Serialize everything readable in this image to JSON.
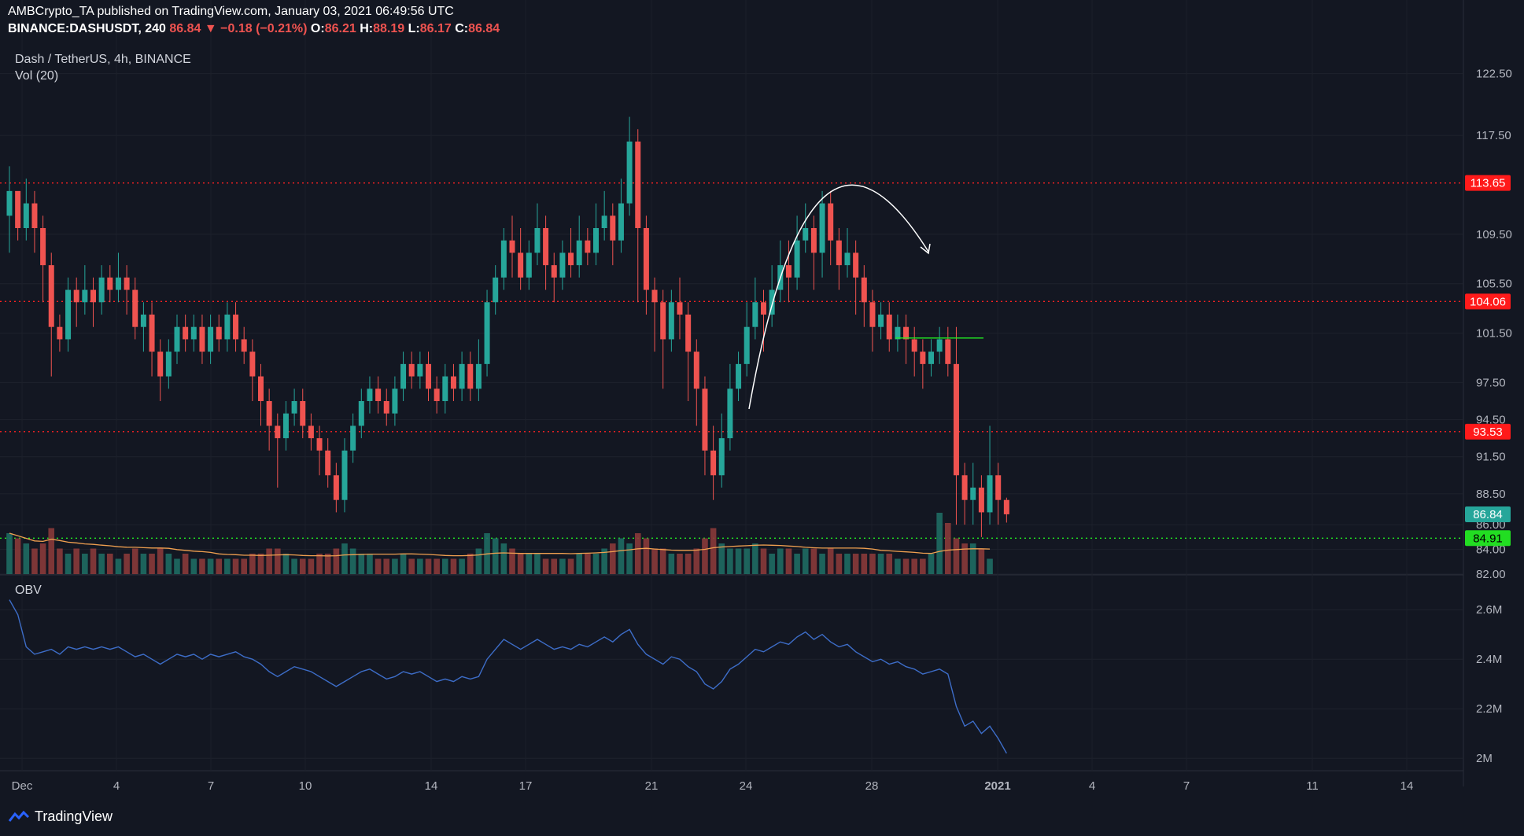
{
  "header": {
    "line1": "AMBCrypto_TA published on TradingView.com, January 03, 2021 06:49:56 UTC",
    "symbol": "BINANCE:DASHUSDT, 240",
    "last": "86.84",
    "change": "−0.18 (−0.21%)",
    "o_label": "O:",
    "o": "86.21",
    "h_label": "H:",
    "h": "88.19",
    "l_label": "L:",
    "l": "86.17",
    "c_label": "C:",
    "c": "86.84"
  },
  "pane_title": "Dash / TetherUS, 4h, BINANCE",
  "vol_label": "Vol (20)",
  "obv_label": "OBV",
  "branding": "TradingView",
  "colors": {
    "up": "#26a69a",
    "down": "#ef5350",
    "bg": "#131722",
    "obv": "#3d6dc8",
    "vol_ma": "#f0a050",
    "resistance": "#ff2222",
    "support": "#22ee22"
  },
  "chart_data": {
    "type": "candlestick",
    "price_axis": {
      "min": 82.0,
      "max": 124.0,
      "ticks": [
        "122.50",
        "117.50",
        "109.50",
        "105.50",
        "101.50",
        "97.50",
        "94.50",
        "91.50",
        "88.50",
        "86.00",
        "84.00",
        "82.00"
      ],
      "tick_values": [
        122.5,
        117.5,
        109.5,
        105.5,
        101.5,
        97.5,
        94.5,
        91.5,
        88.5,
        86.0,
        84.0,
        82.0
      ]
    },
    "obv_axis": {
      "min": 1.95,
      "max": 2.68,
      "ticks": [
        "2.6M",
        "2.4M",
        "2.2M",
        "2M"
      ],
      "tick_values": [
        2.6,
        2.4,
        2.2,
        2.0
      ]
    },
    "x_axis": {
      "labels": [
        "Dec",
        "4",
        "7",
        "10",
        "14",
        "17",
        "21",
        "24",
        "28",
        "2021",
        "4",
        "7",
        "11",
        "14"
      ]
    },
    "levels": [
      {
        "value": 113.65,
        "label": "113.65",
        "color": "#ff2222"
      },
      {
        "value": 104.06,
        "label": "104.06",
        "color": "#ff2222"
      },
      {
        "value": 93.53,
        "label": "93.53",
        "color": "#ff2222"
      },
      {
        "value": 84.91,
        "label": "84.91",
        "color": "#22ee22"
      }
    ],
    "last_price": {
      "value": 86.84,
      "label": "86.84"
    },
    "candles": [
      [
        111,
        113,
        115,
        108
      ],
      [
        113,
        110,
        112,
        109
      ],
      [
        110,
        112,
        114,
        109
      ],
      [
        112,
        110,
        113,
        108
      ],
      [
        110,
        107,
        111,
        104
      ],
      [
        107,
        102,
        108,
        98
      ],
      [
        102,
        101,
        103,
        100
      ],
      [
        101,
        105,
        106,
        100
      ],
      [
        105,
        104,
        106,
        102
      ],
      [
        104,
        105,
        107,
        103
      ],
      [
        105,
        104,
        106,
        102
      ],
      [
        104,
        106,
        107,
        103
      ],
      [
        106,
        105,
        107,
        104
      ],
      [
        105,
        106,
        108,
        104
      ],
      [
        106,
        105,
        107,
        103
      ],
      [
        105,
        102,
        106,
        101
      ],
      [
        102,
        103,
        104,
        100
      ],
      [
        103,
        100,
        104,
        98
      ],
      [
        100,
        98,
        101,
        96
      ],
      [
        98,
        100,
        101,
        97
      ],
      [
        100,
        102,
        103,
        99
      ],
      [
        102,
        101,
        103,
        100
      ],
      [
        101,
        102,
        103,
        100
      ],
      [
        102,
        100,
        103,
        99
      ],
      [
        100,
        102,
        103,
        99
      ],
      [
        102,
        101,
        103,
        100
      ],
      [
        101,
        103,
        104,
        100
      ],
      [
        103,
        101,
        104,
        100
      ],
      [
        101,
        100,
        102,
        99
      ],
      [
        100,
        98,
        101,
        96
      ],
      [
        98,
        96,
        99,
        94
      ],
      [
        96,
        94,
        97,
        92
      ],
      [
        94,
        93,
        95,
        89
      ],
      [
        93,
        95,
        96,
        92
      ],
      [
        95,
        96,
        97,
        94
      ],
      [
        96,
        94,
        97,
        93
      ],
      [
        94,
        93,
        95,
        92
      ],
      [
        93,
        92,
        94,
        90
      ],
      [
        92,
        90,
        93,
        89
      ],
      [
        90,
        88,
        91,
        87
      ],
      [
        88,
        92,
        93,
        87
      ],
      [
        92,
        94,
        95,
        91
      ],
      [
        94,
        96,
        97,
        93
      ],
      [
        96,
        97,
        98,
        95
      ],
      [
        97,
        96,
        98,
        95
      ],
      [
        96,
        95,
        97,
        94
      ],
      [
        95,
        97,
        98,
        94
      ],
      [
        97,
        99,
        100,
        96
      ],
      [
        99,
        98,
        100,
        97
      ],
      [
        98,
        99,
        100,
        97
      ],
      [
        99,
        97,
        100,
        96
      ],
      [
        97,
        96,
        98,
        95
      ],
      [
        96,
        98,
        99,
        95
      ],
      [
        98,
        97,
        99,
        96
      ],
      [
        97,
        99,
        100,
        96
      ],
      [
        99,
        97,
        100,
        96
      ],
      [
        97,
        99,
        101,
        96
      ],
      [
        99,
        104,
        105,
        98
      ],
      [
        104,
        106,
        107,
        103
      ],
      [
        106,
        109,
        110,
        105
      ],
      [
        109,
        108,
        111,
        106
      ],
      [
        108,
        106,
        110,
        105
      ],
      [
        106,
        108,
        109,
        105
      ],
      [
        108,
        110,
        112,
        107
      ],
      [
        110,
        107,
        111,
        105
      ],
      [
        107,
        106,
        108,
        104
      ],
      [
        106,
        108,
        109,
        105
      ],
      [
        108,
        107,
        110,
        106
      ],
      [
        107,
        109,
        111,
        106
      ],
      [
        109,
        108,
        110,
        107
      ],
      [
        108,
        110,
        112,
        107
      ],
      [
        110,
        111,
        113,
        109
      ],
      [
        111,
        109,
        112,
        107
      ],
      [
        109,
        112,
        114,
        108
      ],
      [
        112,
        117,
        119,
        111
      ],
      [
        117,
        110,
        118,
        104
      ],
      [
        110,
        105,
        111,
        103
      ],
      [
        105,
        104,
        106,
        100
      ],
      [
        104,
        101,
        105,
        97
      ],
      [
        101,
        104,
        105,
        100
      ],
      [
        104,
        103,
        106,
        101
      ],
      [
        103,
        100,
        104,
        96
      ],
      [
        100,
        97,
        101,
        94
      ],
      [
        97,
        92,
        98,
        90
      ],
      [
        92,
        90,
        94,
        88
      ],
      [
        90,
        93,
        95,
        89
      ],
      [
        93,
        97,
        99,
        92
      ],
      [
        97,
        99,
        100,
        96
      ],
      [
        99,
        102,
        104,
        98
      ],
      [
        102,
        104,
        106,
        101
      ],
      [
        104,
        103,
        105,
        100
      ],
      [
        103,
        105,
        107,
        102
      ],
      [
        105,
        107,
        109,
        104
      ],
      [
        107,
        106,
        109,
        104
      ],
      [
        106,
        109,
        111,
        105
      ],
      [
        109,
        110,
        112,
        108
      ],
      [
        110,
        108,
        111,
        105
      ],
      [
        108,
        112,
        113,
        106
      ],
      [
        112,
        109,
        113,
        107
      ],
      [
        109,
        107,
        110,
        105
      ],
      [
        107,
        108,
        110,
        106
      ],
      [
        108,
        106,
        109,
        103
      ],
      [
        106,
        104,
        107,
        102
      ],
      [
        104,
        102,
        105,
        100
      ],
      [
        102,
        103,
        104,
        101
      ],
      [
        103,
        101,
        104,
        100
      ],
      [
        101,
        102,
        103,
        100
      ],
      [
        102,
        101,
        103,
        99
      ],
      [
        101,
        100,
        102,
        98
      ],
      [
        100,
        99,
        101,
        97
      ],
      [
        99,
        100,
        101,
        98
      ],
      [
        100,
        101,
        102,
        99
      ],
      [
        101,
        99,
        102,
        98
      ],
      [
        99,
        90,
        102,
        86
      ],
      [
        90,
        88,
        91,
        86
      ],
      [
        88,
        89,
        91,
        86
      ],
      [
        89,
        87,
        90,
        85
      ],
      [
        87,
        90,
        94,
        86
      ],
      [
        90,
        88,
        91,
        86
      ],
      [
        88,
        86.84,
        88.19,
        86.17
      ]
    ],
    "volume": [
      8,
      7,
      6,
      5,
      6,
      9,
      5,
      4,
      5,
      4,
      5,
      4,
      4,
      3,
      4,
      5,
      4,
      4,
      5,
      4,
      3,
      4,
      3,
      3,
      3,
      3,
      3,
      3,
      3,
      4,
      4,
      5,
      5,
      4,
      3,
      3,
      3,
      4,
      4,
      5,
      6,
      5,
      4,
      4,
      3,
      3,
      3,
      4,
      3,
      3,
      3,
      3,
      3,
      3,
      3,
      4,
      5,
      8,
      7,
      6,
      5,
      4,
      4,
      4,
      3,
      3,
      3,
      3,
      4,
      4,
      4,
      5,
      6,
      7,
      6,
      8,
      7,
      5,
      5,
      4,
      4,
      4,
      5,
      7,
      9,
      6,
      5,
      5,
      5,
      6,
      5,
      4,
      5,
      5,
      4,
      5,
      5,
      4,
      5,
      4,
      4,
      4,
      4,
      4,
      4,
      4,
      3,
      3,
      3,
      3,
      4,
      12,
      10,
      7,
      6,
      6,
      5,
      3
    ],
    "obv": [
      2.64,
      2.58,
      2.45,
      2.42,
      2.43,
      2.44,
      2.42,
      2.45,
      2.44,
      2.45,
      2.44,
      2.45,
      2.44,
      2.45,
      2.43,
      2.41,
      2.42,
      2.4,
      2.38,
      2.4,
      2.42,
      2.41,
      2.42,
      2.4,
      2.42,
      2.41,
      2.42,
      2.43,
      2.41,
      2.4,
      2.38,
      2.35,
      2.33,
      2.35,
      2.37,
      2.36,
      2.35,
      2.33,
      2.31,
      2.29,
      2.31,
      2.33,
      2.35,
      2.36,
      2.34,
      2.32,
      2.33,
      2.35,
      2.34,
      2.35,
      2.33,
      2.31,
      2.32,
      2.31,
      2.33,
      2.32,
      2.33,
      2.4,
      2.44,
      2.48,
      2.46,
      2.44,
      2.46,
      2.48,
      2.46,
      2.44,
      2.45,
      2.44,
      2.46,
      2.45,
      2.47,
      2.49,
      2.47,
      2.5,
      2.52,
      2.46,
      2.42,
      2.4,
      2.38,
      2.41,
      2.4,
      2.37,
      2.35,
      2.3,
      2.28,
      2.31,
      2.36,
      2.38,
      2.41,
      2.44,
      2.43,
      2.45,
      2.47,
      2.46,
      2.49,
      2.51,
      2.48,
      2.5,
      2.47,
      2.45,
      2.46,
      2.43,
      2.41,
      2.39,
      2.4,
      2.38,
      2.39,
      2.37,
      2.36,
      2.34,
      2.35,
      2.36,
      2.34,
      2.21,
      2.13,
      2.15,
      2.1,
      2.13,
      2.08,
      2.02
    ]
  }
}
